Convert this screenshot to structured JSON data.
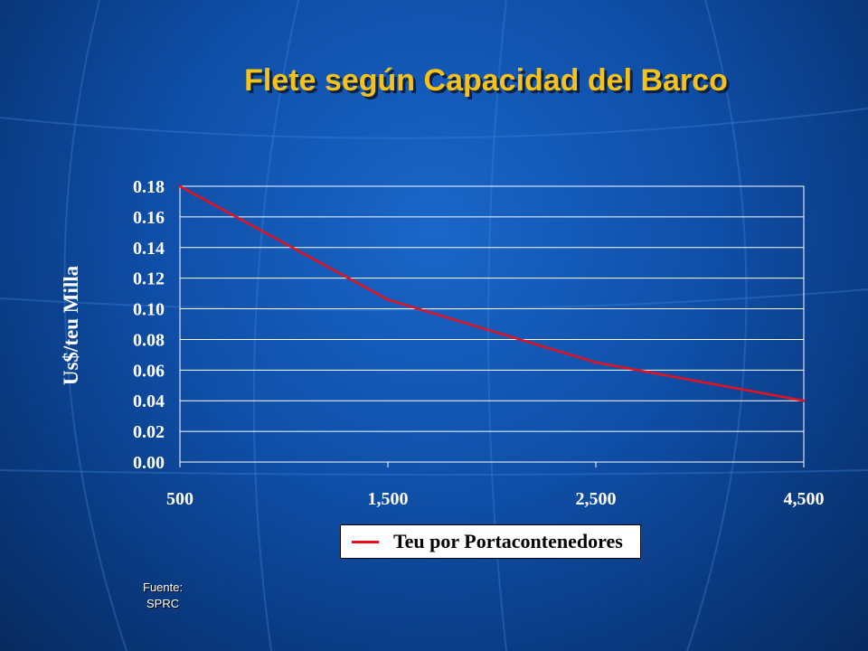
{
  "slide": {
    "title": "Flete según Capacidad del Barco",
    "source_line1": "Fuente:",
    "source_line2": "SPRC"
  },
  "colors": {
    "title": "#f5c21a",
    "line": "#e8101c",
    "background": "#0f4fa8"
  },
  "chart_data": {
    "type": "line",
    "title": "",
    "xlabel": "",
    "ylabel": "Us$/teu Milla",
    "categories": [
      "500",
      "1,500",
      "2,500",
      "4,500"
    ],
    "series": [
      {
        "name": "Teu por Portacontenedores",
        "values": [
          0.18,
          0.106,
          0.065,
          0.04
        ]
      }
    ],
    "y_ticks": [
      "0.00",
      "0.02",
      "0.04",
      "0.06",
      "0.08",
      "0.10",
      "0.12",
      "0.14",
      "0.16",
      "0.18"
    ],
    "ylim": [
      0,
      0.18
    ],
    "grid": true,
    "legend_position": "bottom"
  }
}
